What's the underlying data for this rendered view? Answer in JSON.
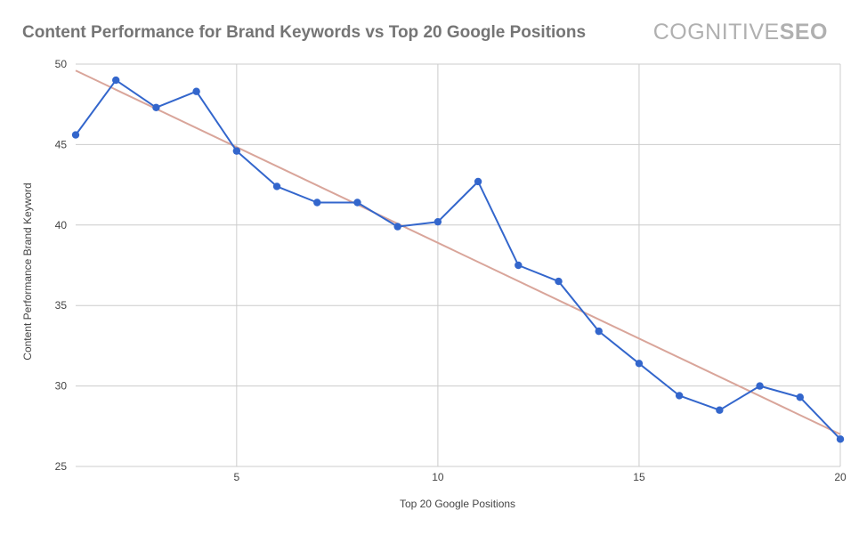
{
  "brand": {
    "logo_text_light": "COGNITIVE",
    "logo_text_bold": "SEO"
  },
  "chart_data": {
    "type": "line",
    "title": "Content Performance for Brand Keywords vs Top 20 Google Positions",
    "xlabel": "Top 20 Google Positions",
    "ylabel": "Content Performance Brand Keyword",
    "xlim": [
      1,
      20
    ],
    "ylim": [
      25,
      50
    ],
    "xticks": [
      5,
      10,
      15,
      20
    ],
    "yticks": [
      25,
      30,
      35,
      40,
      45,
      50
    ],
    "grid": true,
    "legend": "none",
    "series": [
      {
        "color": "#3366cc",
        "x": [
          1,
          2,
          3,
          4,
          5,
          6,
          7,
          8,
          9,
          10,
          11,
          12,
          13,
          14,
          15,
          16,
          17,
          18,
          19,
          20
        ],
        "y": [
          45.6,
          49.0,
          47.3,
          48.3,
          44.6,
          42.4,
          41.4,
          41.4,
          39.9,
          40.2,
          42.7,
          37.5,
          36.5,
          33.4,
          31.4,
          29.4,
          28.5,
          30.0,
          29.3,
          26.7
        ]
      }
    ],
    "trendline": {
      "type": "linear",
      "color": "#d9a59a",
      "from": [
        1,
        49.6
      ],
      "to": [
        20,
        27.0
      ]
    },
    "colors": {
      "title": "#757575",
      "axis_text": "#444444",
      "gridline": "#cccccc",
      "logo": "#b0b0b0"
    }
  }
}
